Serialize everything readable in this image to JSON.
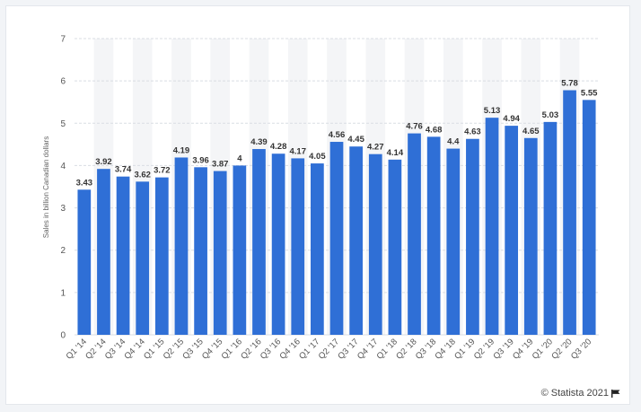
{
  "chart_data": {
    "type": "bar",
    "ylabel": "Sales in billion Canadian dollars",
    "ylim": [
      0,
      7
    ],
    "yticks": [
      "0",
      "1",
      "2",
      "3",
      "4",
      "5",
      "6",
      "7"
    ],
    "grid": true,
    "bar_color": "#2f6fd6",
    "categories": [
      "Q1 '14",
      "Q2 '14",
      "Q3 '14",
      "Q4 '14",
      "Q1 '15",
      "Q2 '15",
      "Q3 '15",
      "Q4 '15",
      "Q1 '16",
      "Q2 '16",
      "Q3 '16",
      "Q4 '16",
      "Q1 '17",
      "Q2 '17",
      "Q3 '17",
      "Q4 '17",
      "Q1 '18",
      "Q2 '18",
      "Q3 '18",
      "Q4 '18",
      "Q1 '19",
      "Q2 '19",
      "Q3 '19",
      "Q4 '19",
      "Q1 '20",
      "Q2 '20",
      "Q3 '20"
    ],
    "values": [
      3.43,
      3.92,
      3.74,
      3.62,
      3.72,
      4.19,
      3.96,
      3.87,
      4,
      4.39,
      4.28,
      4.17,
      4.05,
      4.56,
      4.45,
      4.27,
      4.14,
      4.76,
      4.68,
      4.4,
      4.63,
      5.13,
      4.94,
      4.65,
      5.03,
      5.78,
      5.55
    ],
    "value_labels": [
      "3.43",
      "3.92",
      "3.74",
      "3.62",
      "3.72",
      "4.19",
      "3.96",
      "3.87",
      "4",
      "4.39",
      "4.28",
      "4.17",
      "4.05",
      "4.56",
      "4.45",
      "4.27",
      "4.14",
      "4.76",
      "4.68",
      "4.4",
      "4.63",
      "5.13",
      "4.94",
      "4.65",
      "5.03",
      "5.78",
      "5.55"
    ]
  },
  "footer": {
    "credit": "© Statista 2021",
    "flag_icon": "flag-icon"
  }
}
